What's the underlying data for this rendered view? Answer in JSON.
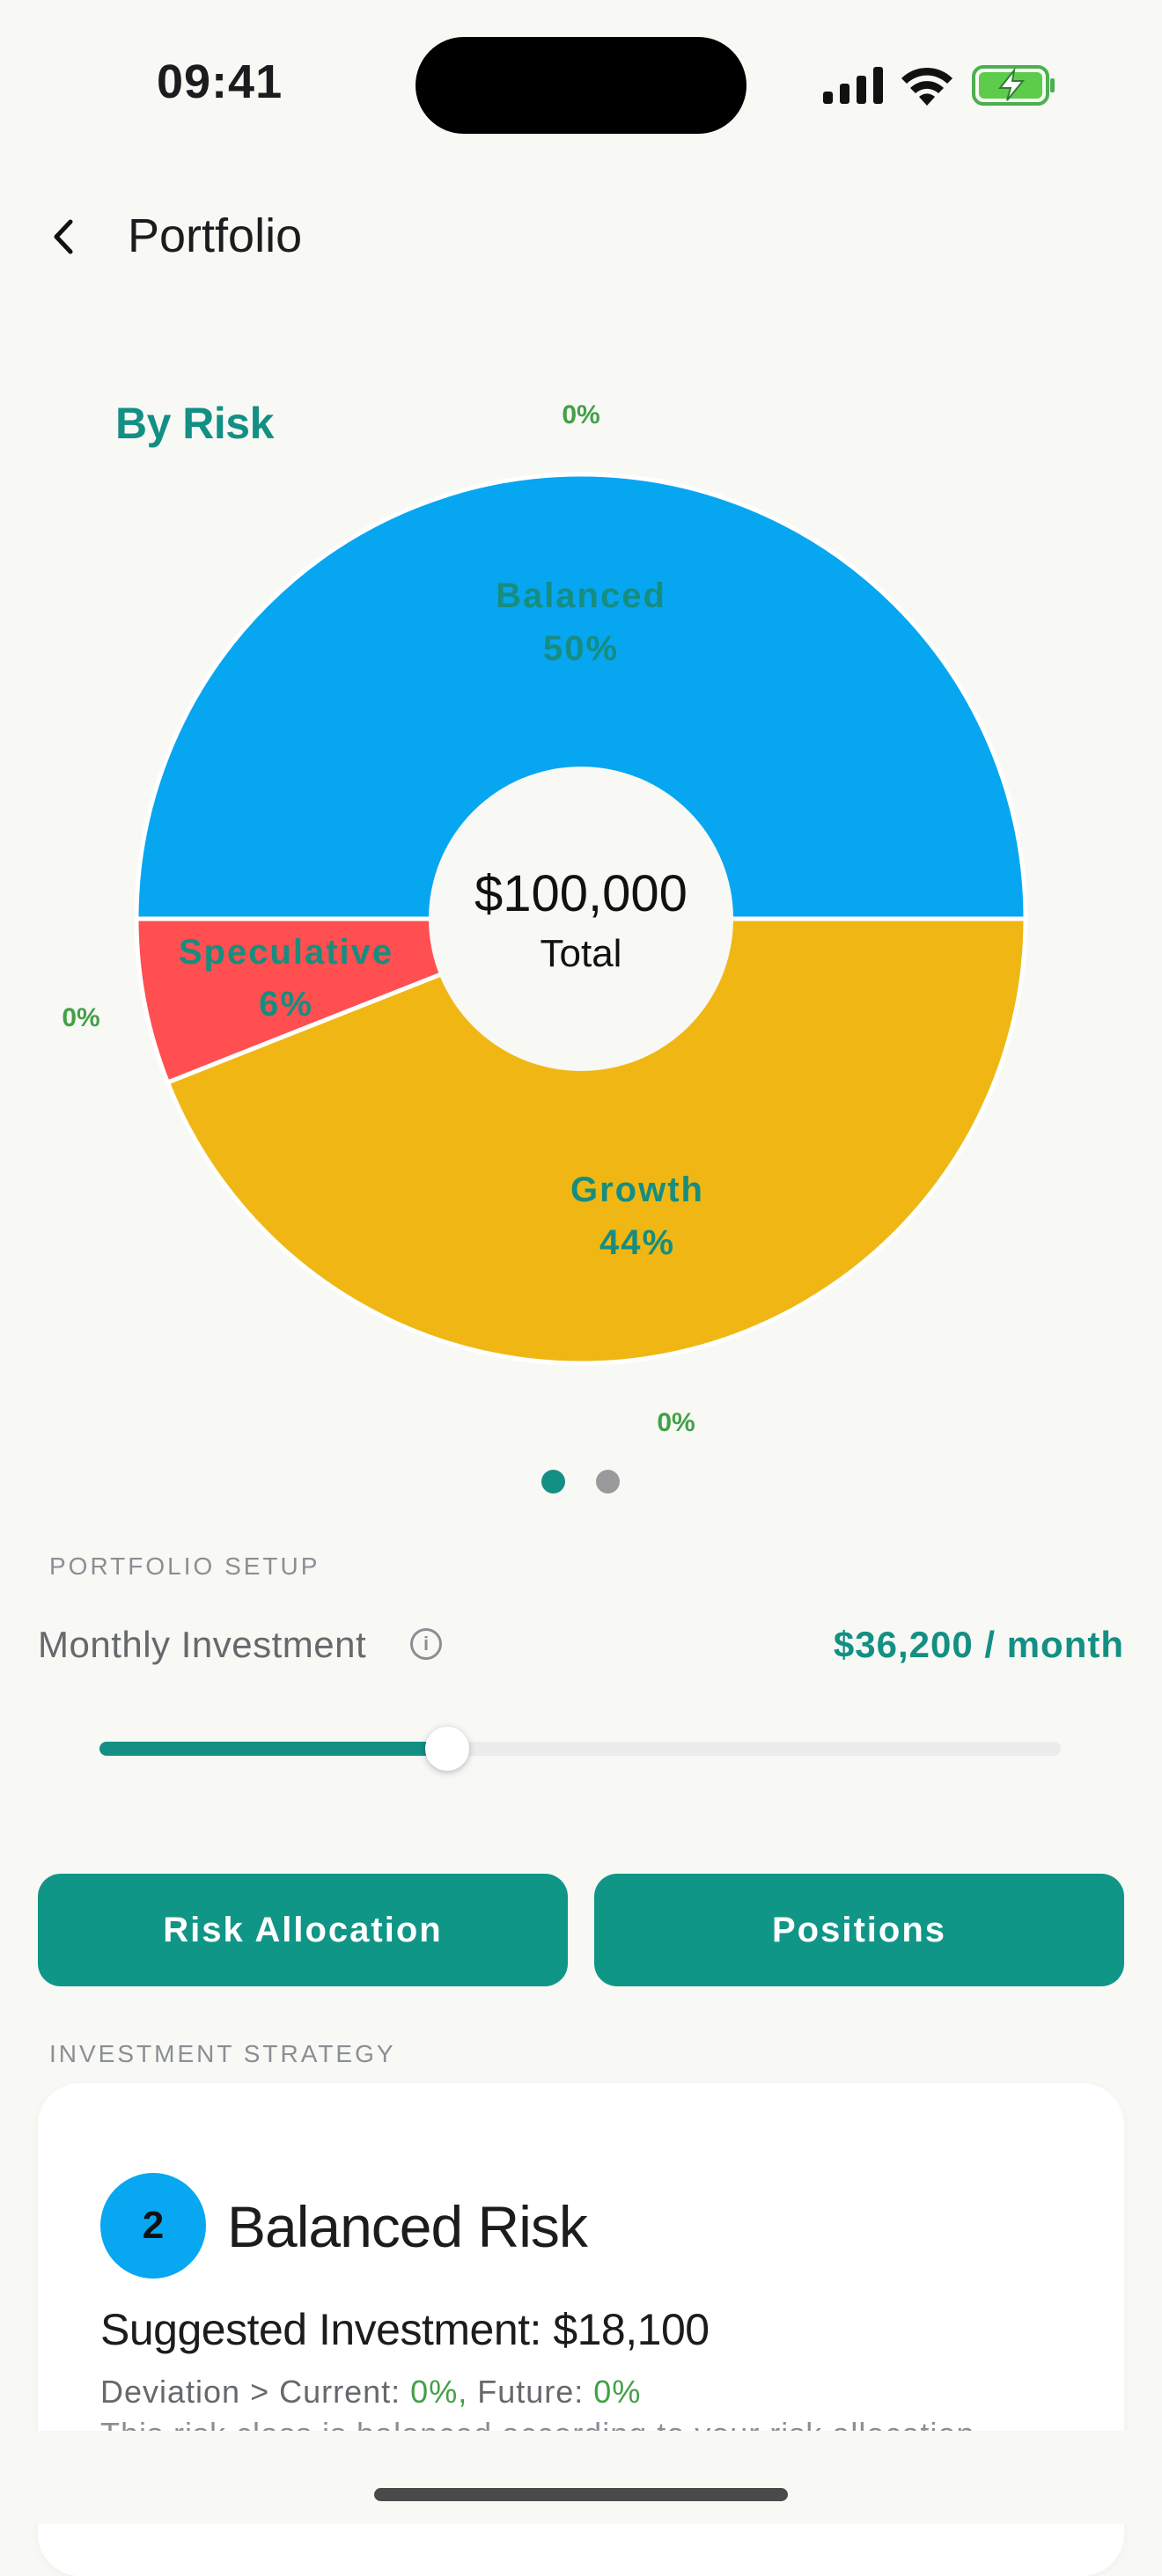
{
  "status_bar": {
    "time": "09:41"
  },
  "header": {
    "title": "Portfolio"
  },
  "chart_data": {
    "type": "pie",
    "title": "By Risk",
    "center_amount": "$100,000",
    "center_label": "Total",
    "slices": [
      {
        "name": "Balanced",
        "value": 50,
        "label": "50%",
        "color": "#07a6f1"
      },
      {
        "name": "Growth",
        "value": 44,
        "label": "44%",
        "color": "#f0b714"
      },
      {
        "name": "Speculative",
        "value": 6,
        "label": "6%",
        "color": "#ff4f50"
      }
    ],
    "zero_labels": [
      "0%",
      "0%",
      "0%"
    ]
  },
  "pager": {
    "pages": 2,
    "active": 1
  },
  "portfolio_setup": {
    "section_title": "PORTFOLIO SETUP",
    "monthly_label": "Monthly Investment",
    "info_icon": "i",
    "monthly_value": "$36,200 / month",
    "slider_fraction": 0.362
  },
  "buttons": {
    "risk_allocation": "Risk Allocation",
    "positions": "Positions"
  },
  "investment_strategy": {
    "section_title": "INVESTMENT STRATEGY",
    "badge": "2",
    "card_title": "Balanced Risk",
    "suggested": "Suggested Investment: $18,100",
    "deviation_prefix": "Deviation > Current:",
    "current_value": "0%,",
    "future_label": "Future:",
    "future_value": "0%",
    "description": "This risk class is balanced according to your risk allocation"
  },
  "colors": {
    "accent": "#138f84",
    "button": "#109687",
    "badge": "#08a7f1"
  }
}
